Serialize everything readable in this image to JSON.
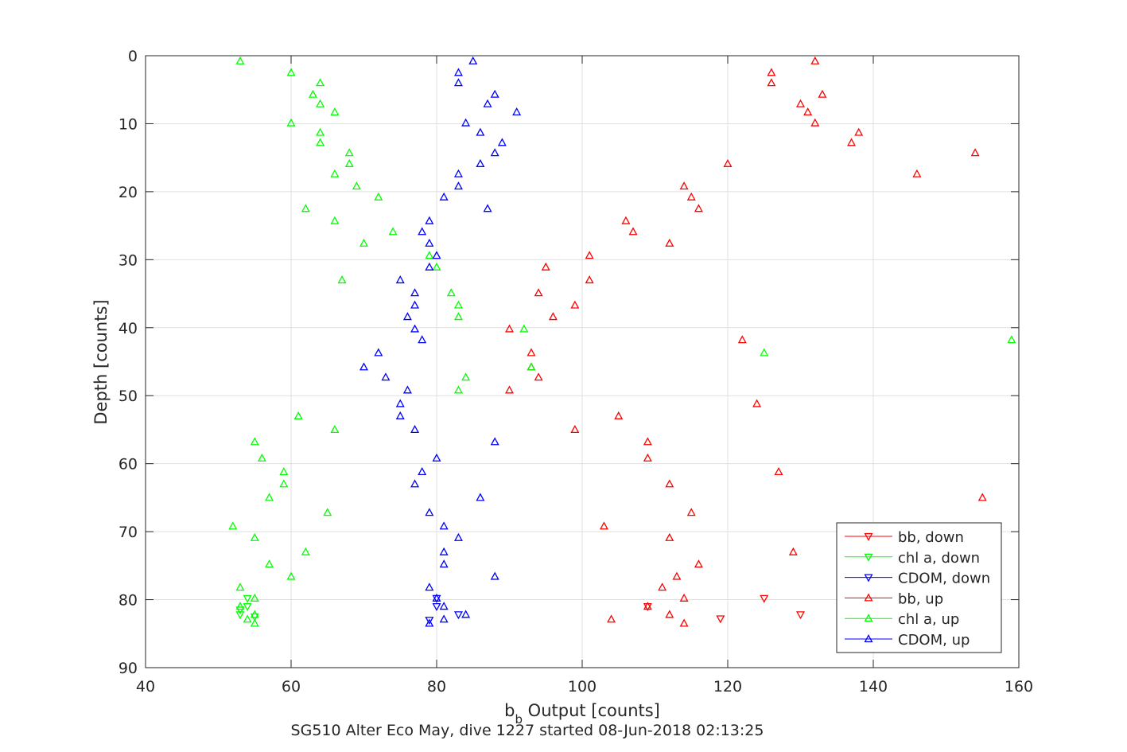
{
  "chart_data": {
    "type": "scatter",
    "title": "SG510 Alter Eco May, dive 1227 started 08-Jun-2018 02:13:25",
    "xlabel_main": "b",
    "xlabel_sub": "b",
    "xlabel_rest": " Output [counts]",
    "ylabel": "Depth [counts]",
    "xlim": [
      40,
      160
    ],
    "ylim": [
      0,
      90
    ],
    "y_reversed": true,
    "grid": true,
    "legend_position": "bottom-right",
    "x_ticks": [
      "40",
      "60",
      "80",
      "100",
      "120",
      "140",
      "160"
    ],
    "y_ticks": [
      "0",
      "10",
      "20",
      "30",
      "40",
      "50",
      "60",
      "70",
      "80",
      "90"
    ],
    "series": [
      {
        "name": "bb, down",
        "color": "#ff0000",
        "marker": "triangle-down",
        "points": [
          [
            125,
            79.8
          ],
          [
            109,
            81
          ],
          [
            119,
            82.8
          ],
          [
            130,
            82.2
          ]
        ]
      },
      {
        "name": "chl a, down",
        "color": "#00ff00",
        "marker": "triangle-down",
        "points": [
          [
            54,
            79.8
          ],
          [
            54,
            81
          ],
          [
            53,
            81.5
          ],
          [
            53,
            82.2
          ],
          [
            55,
            82.5
          ]
        ]
      },
      {
        "name": "CDOM, down",
        "color": "#0000ff",
        "marker": "triangle-down",
        "points": [
          [
            80,
            79.8
          ],
          [
            80,
            81
          ],
          [
            83,
            82.2
          ],
          [
            79,
            83
          ]
        ]
      },
      {
        "name": "bb, up",
        "color": "#ff0000",
        "marker": "triangle-up",
        "points": [
          [
            132,
            0.8
          ],
          [
            126,
            2.5
          ],
          [
            126,
            4
          ],
          [
            133,
            5.7
          ],
          [
            130,
            7.1
          ],
          [
            131,
            8.3
          ],
          [
            132,
            9.9
          ],
          [
            138,
            11.3
          ],
          [
            137,
            12.8
          ],
          [
            154,
            14.3
          ],
          [
            120,
            15.9
          ],
          [
            146,
            17.4
          ],
          [
            114,
            19.2
          ],
          [
            115,
            20.8
          ],
          [
            116,
            22.5
          ],
          [
            106,
            24.3
          ],
          [
            107,
            25.9
          ],
          [
            112,
            27.6
          ],
          [
            101,
            29.4
          ],
          [
            95,
            31.1
          ],
          [
            101,
            33
          ],
          [
            94,
            34.9
          ],
          [
            99,
            36.7
          ],
          [
            96,
            38.4
          ],
          [
            90,
            40.2
          ],
          [
            122,
            41.8
          ],
          [
            93,
            43.7
          ],
          [
            93,
            45.8
          ],
          [
            94,
            47.3
          ],
          [
            90,
            49.2
          ],
          [
            124,
            51.2
          ],
          [
            105,
            53
          ],
          [
            99,
            55
          ],
          [
            109,
            56.8
          ],
          [
            109,
            59.2
          ],
          [
            127,
            61.2
          ],
          [
            112,
            63
          ],
          [
            155,
            65
          ],
          [
            115,
            67.2
          ],
          [
            103,
            69.2
          ],
          [
            112,
            70.9
          ],
          [
            129,
            73
          ],
          [
            116,
            74.8
          ],
          [
            113,
            76.6
          ],
          [
            111,
            78.2
          ],
          [
            114,
            79.8
          ],
          [
            109,
            81
          ],
          [
            112,
            82.2
          ],
          [
            104,
            82.9
          ],
          [
            114,
            83.5
          ]
        ]
      },
      {
        "name": "chl a, up",
        "color": "#00ff00",
        "marker": "triangle-up",
        "points": [
          [
            53,
            0.8
          ],
          [
            60,
            2.5
          ],
          [
            64,
            4
          ],
          [
            63,
            5.7
          ],
          [
            64,
            7.1
          ],
          [
            66,
            8.3
          ],
          [
            60,
            9.9
          ],
          [
            64,
            11.3
          ],
          [
            64,
            12.8
          ],
          [
            68,
            14.3
          ],
          [
            68,
            15.9
          ],
          [
            66,
            17.4
          ],
          [
            69,
            19.2
          ],
          [
            72,
            20.8
          ],
          [
            62,
            22.5
          ],
          [
            66,
            24.3
          ],
          [
            74,
            25.9
          ],
          [
            70,
            27.6
          ],
          [
            79,
            29.4
          ],
          [
            80,
            31.1
          ],
          [
            67,
            33
          ],
          [
            82,
            34.9
          ],
          [
            83,
            36.7
          ],
          [
            83,
            38.4
          ],
          [
            92,
            40.2
          ],
          [
            159,
            41.8
          ],
          [
            125,
            43.7
          ],
          [
            93,
            45.8
          ],
          [
            84,
            47.3
          ],
          [
            83,
            49.2
          ],
          [
            61,
            53
          ],
          [
            66,
            55
          ],
          [
            55,
            56.8
          ],
          [
            56,
            59.2
          ],
          [
            59,
            61.2
          ],
          [
            59,
            63
          ],
          [
            57,
            65
          ],
          [
            65,
            67.2
          ],
          [
            52,
            69.2
          ],
          [
            55,
            70.9
          ],
          [
            62,
            73
          ],
          [
            57,
            74.8
          ],
          [
            60,
            76.6
          ],
          [
            53,
            78.2
          ],
          [
            55,
            79.8
          ],
          [
            53,
            81
          ],
          [
            55,
            82.2
          ],
          [
            54,
            82.9
          ],
          [
            55,
            83.5
          ]
        ]
      },
      {
        "name": "CDOM, up",
        "color": "#0000ff",
        "marker": "triangle-up",
        "points": [
          [
            85,
            0.8
          ],
          [
            83,
            2.5
          ],
          [
            83,
            4
          ],
          [
            88,
            5.7
          ],
          [
            87,
            7.1
          ],
          [
            91,
            8.3
          ],
          [
            84,
            9.9
          ],
          [
            86,
            11.3
          ],
          [
            89,
            12.8
          ],
          [
            88,
            14.3
          ],
          [
            86,
            15.9
          ],
          [
            83,
            17.4
          ],
          [
            83,
            19.2
          ],
          [
            81,
            20.8
          ],
          [
            87,
            22.5
          ],
          [
            79,
            24.3
          ],
          [
            78,
            25.9
          ],
          [
            79,
            27.6
          ],
          [
            80,
            29.4
          ],
          [
            79,
            31.1
          ],
          [
            75,
            33
          ],
          [
            77,
            34.9
          ],
          [
            77,
            36.7
          ],
          [
            76,
            38.4
          ],
          [
            77,
            40.2
          ],
          [
            78,
            41.8
          ],
          [
            72,
            43.7
          ],
          [
            70,
            45.8
          ],
          [
            73,
            47.3
          ],
          [
            76,
            49.2
          ],
          [
            75,
            51.2
          ],
          [
            75,
            53
          ],
          [
            77,
            55
          ],
          [
            88,
            56.8
          ],
          [
            80,
            59.2
          ],
          [
            78,
            61.2
          ],
          [
            77,
            63
          ],
          [
            86,
            65
          ],
          [
            79,
            67.2
          ],
          [
            81,
            69.2
          ],
          [
            83,
            70.9
          ],
          [
            81,
            73
          ],
          [
            81,
            74.8
          ],
          [
            88,
            76.6
          ],
          [
            79,
            78.2
          ],
          [
            80,
            79.8
          ],
          [
            81,
            81
          ],
          [
            84,
            82.2
          ],
          [
            81,
            82.9
          ],
          [
            79,
            83.5
          ]
        ]
      }
    ]
  }
}
